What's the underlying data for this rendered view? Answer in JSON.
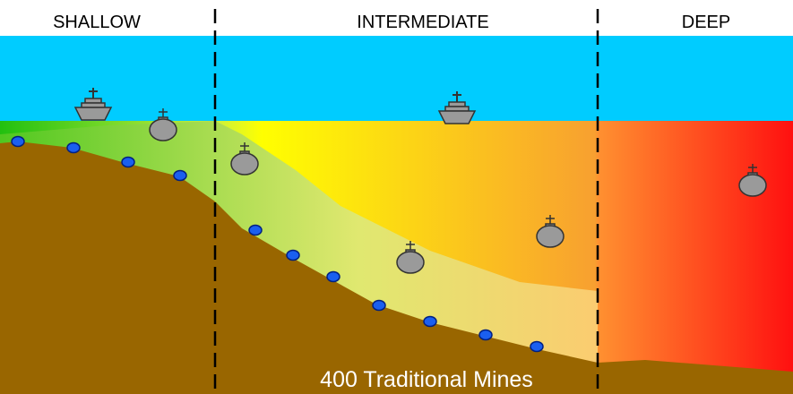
{
  "zones": [
    {
      "label": "SHALLOW"
    },
    {
      "label": "INTERMEDIATE"
    },
    {
      "label": "DEEP"
    }
  ],
  "caption": "400 Traditional Mines"
}
